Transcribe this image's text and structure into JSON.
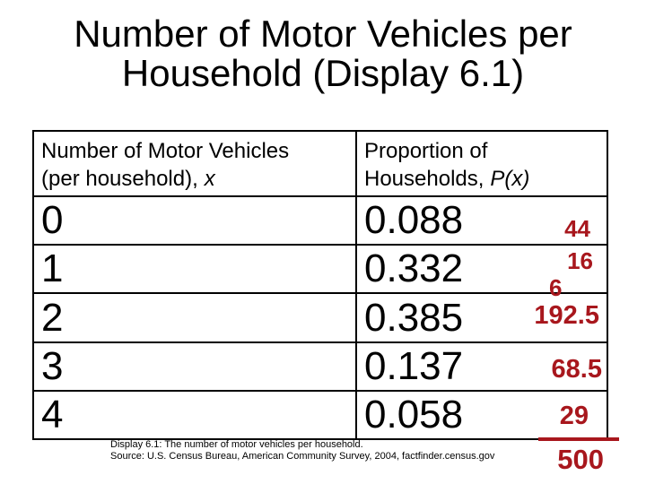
{
  "slide": {
    "title_line1": "Number of Motor Vehicles per",
    "title_line2": "Household (Display 6.1)",
    "caption_line1": "Display 6.1: The number of motor vehicles per household.",
    "caption_line2": "Source: U.S. Census Bureau, American Community Survey, 2004, factfinder.census.gov"
  },
  "table": {
    "col1_header_line1": "Number of Motor Vehicles",
    "col1_header_line2": "(per household),",
    "col1_header_symbol": "x",
    "col2_header_line1": "Proportion of",
    "col2_header_line2": "Households,",
    "col2_header_symbol": "P(x)",
    "rows": [
      {
        "x": "0",
        "p": "0.088"
      },
      {
        "x": "1",
        "p": "0.332"
      },
      {
        "x": "2",
        "p": "0.385"
      },
      {
        "x": "3",
        "p": "0.137"
      },
      {
        "x": "4",
        "p": "0.058"
      }
    ]
  },
  "annotations": {
    "color": "#a8171d",
    "count_row0": "44",
    "count_row1_part1": "16",
    "count_row1_part2": "6",
    "count_row2": "192.5",
    "count_row3": "68.5",
    "count_row4": "29",
    "total": "500"
  },
  "chart_data": {
    "type": "table",
    "title": "Number of Motor Vehicles per Household (Display 6.1)",
    "columns": [
      "Number of Motor Vehicles (per household), x",
      "Proportion of Households, P(x)"
    ],
    "rows": [
      [
        0,
        0.088
      ],
      [
        1,
        0.332
      ],
      [
        2,
        0.385
      ],
      [
        3,
        0.137
      ],
      [
        4,
        0.058
      ]
    ],
    "annotated_counts_red": [
      44,
      166,
      192.5,
      68.5,
      29
    ],
    "annotated_total_red": 500
  }
}
